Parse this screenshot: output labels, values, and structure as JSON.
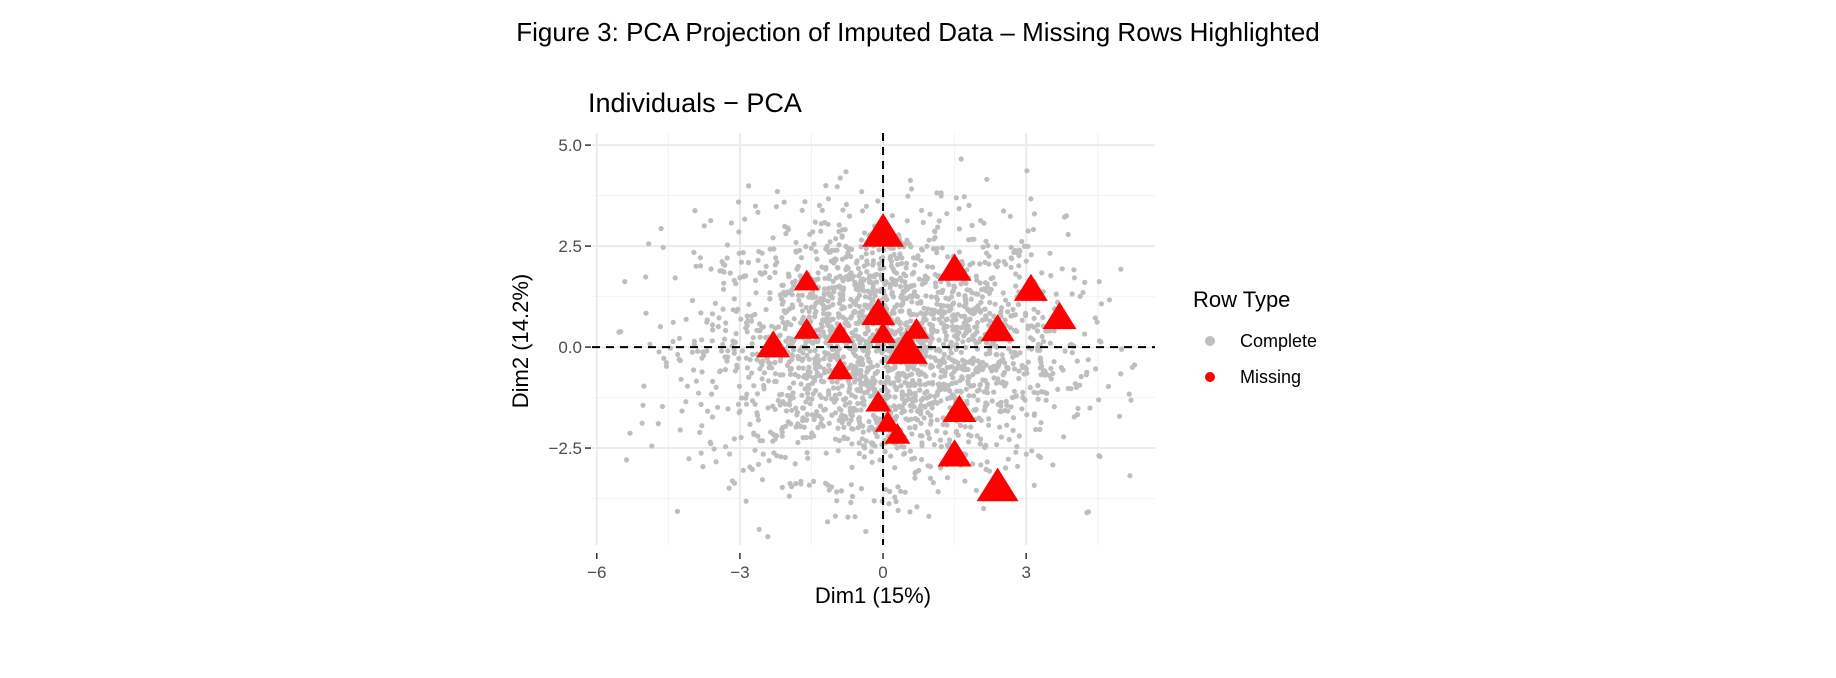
{
  "figure_title": "Figure 3: PCA Projection of Imputed Data – Missing Rows Highlighted",
  "chart_data": {
    "type": "scatter",
    "title": "Individuals − PCA",
    "xlabel": "Dim1 (15%)",
    "ylabel": "Dim2 (14.2%)",
    "xlim": [
      -6.1,
      5.7
    ],
    "ylim": [
      -4.9,
      5.3
    ],
    "x_ticks": [
      -6,
      -3,
      0,
      3
    ],
    "x_tick_labels": [
      "−6",
      "−3",
      "0",
      "3"
    ],
    "y_ticks": [
      5.0,
      2.5,
      0.0,
      -2.5
    ],
    "y_tick_labels": [
      "5.0",
      "2.5",
      "0.0",
      "−2.5"
    ],
    "reference_lines": {
      "x": 0,
      "y": 0,
      "style": "dashed"
    },
    "grid": true,
    "legend": {
      "title": "Row Type",
      "position": "right",
      "entries": [
        {
          "label": "Complete",
          "color": "#bebebe"
        },
        {
          "label": "Missing",
          "color": "#ff0000"
        }
      ]
    },
    "complete_series": {
      "name": "Complete",
      "color": "#bebebe",
      "n_points": 2400,
      "center": [
        0,
        0
      ],
      "sd": [
        1.9,
        1.6
      ]
    },
    "missing_series": {
      "name": "Missing",
      "color": "#ff0000",
      "points": [
        {
          "x": 0.0,
          "y": 2.8,
          "size": "large"
        },
        {
          "x": 1.5,
          "y": 1.9,
          "size": "medium"
        },
        {
          "x": 3.1,
          "y": 1.4,
          "size": "medium"
        },
        {
          "x": 3.7,
          "y": 0.7,
          "size": "medium"
        },
        {
          "x": 2.4,
          "y": 0.4,
          "size": "medium"
        },
        {
          "x": -1.6,
          "y": 1.6,
          "size": "small"
        },
        {
          "x": -2.3,
          "y": 0.0,
          "size": "medium"
        },
        {
          "x": -1.6,
          "y": 0.4,
          "size": "small"
        },
        {
          "x": -0.9,
          "y": 0.3,
          "size": "small"
        },
        {
          "x": -0.1,
          "y": 0.8,
          "size": "medium"
        },
        {
          "x": 0.7,
          "y": 0.4,
          "size": "small"
        },
        {
          "x": 0.0,
          "y": 0.3,
          "size": "small"
        },
        {
          "x": 0.5,
          "y": -0.1,
          "size": "large"
        },
        {
          "x": -0.9,
          "y": -0.6,
          "size": "small"
        },
        {
          "x": -0.1,
          "y": -1.4,
          "size": "small"
        },
        {
          "x": 0.1,
          "y": -1.9,
          "size": "small"
        },
        {
          "x": 0.3,
          "y": -2.2,
          "size": "small"
        },
        {
          "x": 1.6,
          "y": -1.6,
          "size": "medium"
        },
        {
          "x": 1.5,
          "y": -2.7,
          "size": "medium"
        },
        {
          "x": 2.4,
          "y": -3.5,
          "size": "large"
        }
      ]
    }
  }
}
